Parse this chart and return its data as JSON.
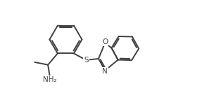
{
  "bg_color": "#ffffff",
  "line_color": "#404040",
  "line_width": 1.4,
  "text_color": "#404040",
  "label_NH2": "NH₂",
  "label_S": "S",
  "label_N": "N",
  "label_O": "O",
  "figsize": [
    2.97,
    1.53
  ],
  "dpi": 100
}
